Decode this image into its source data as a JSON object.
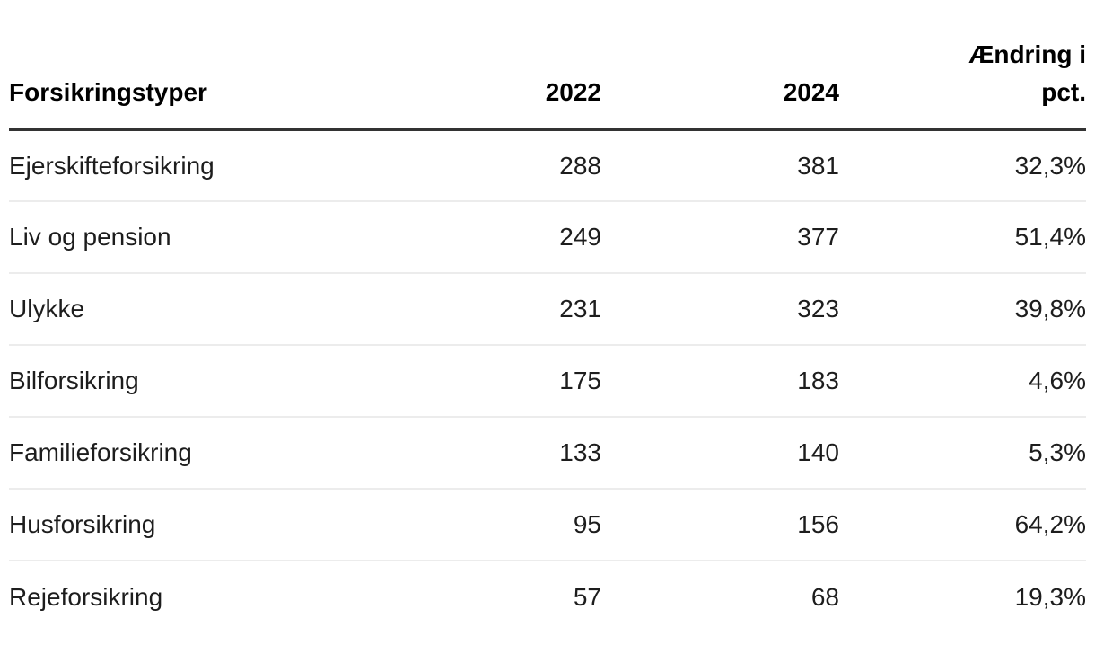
{
  "colors": {
    "background": "#ffffff",
    "header_text": "#000000",
    "body_text": "#1d1d1d",
    "header_rule": "#333333",
    "row_divider": "#ececec"
  },
  "chart_data": {
    "type": "table",
    "title": "",
    "columns": [
      "Forsikringstyper",
      "2022",
      "2024",
      "Ændring i pct."
    ],
    "rows": [
      {
        "name": "Ejerskifteforsikring",
        "y2022": "288",
        "y2024": "381",
        "change": "32,3%"
      },
      {
        "name": "Liv og pension",
        "y2022": "249",
        "y2024": "377",
        "change": "51,4%"
      },
      {
        "name": "Ulykke",
        "y2022": "231",
        "y2024": "323",
        "change": "39,8%"
      },
      {
        "name": "Bilforsikring",
        "y2022": "175",
        "y2024": "183",
        "change": "4,6%"
      },
      {
        "name": "Familieforsikring",
        "y2022": "133",
        "y2024": "140",
        "change": "5,3%"
      },
      {
        "name": "Husforsikring",
        "y2022": "95",
        "y2024": "156",
        "change": "64,2%"
      },
      {
        "name": "Rejeforsikring",
        "y2022": "57",
        "y2024": "68",
        "change": "19,3%"
      }
    ]
  }
}
